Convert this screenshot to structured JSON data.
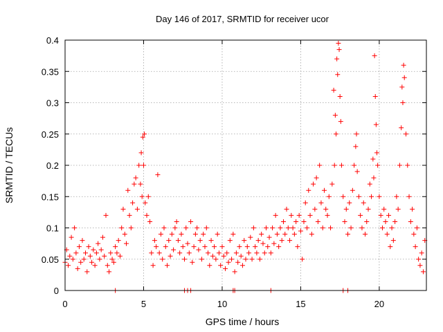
{
  "chart_data": {
    "type": "scatter",
    "title": "Day 146 of 2017, SRMTID for receiver ucor",
    "xlabel": "GPS time / hours",
    "ylabel": "SRMTID / TECUs",
    "xlim": [
      0,
      23
    ],
    "ylim": [
      0,
      0.4
    ],
    "x_ticks": [
      0,
      5,
      10,
      15,
      20
    ],
    "x_tick_labels": [
      "0",
      "5",
      "10",
      "15",
      "20"
    ],
    "y_ticks": [
      0,
      0.05,
      0.1,
      0.15,
      0.2,
      0.25,
      0.3,
      0.35,
      0.4
    ],
    "y_tick_labels": [
      "0",
      "0.05",
      "0.1",
      "0.15",
      "0.2",
      "0.25",
      "0.3",
      "0.35",
      "0.4"
    ],
    "grid": true,
    "marker": "+",
    "color": "#ff0000",
    "series": [
      {
        "name": "SRMTID",
        "points": [
          [
            0.0,
            0.045
          ],
          [
            0.1,
            0.065
          ],
          [
            0.2,
            0.04
          ],
          [
            0.3,
            0.055
          ],
          [
            0.4,
            0.085
          ],
          [
            0.5,
            0.05
          ],
          [
            0.6,
            0.1
          ],
          [
            0.7,
            0.06
          ],
          [
            0.8,
            0.035
          ],
          [
            0.9,
            0.07
          ],
          [
            1.0,
            0.045
          ],
          [
            1.1,
            0.08
          ],
          [
            1.2,
            0.05
          ],
          [
            1.3,
            0.06
          ],
          [
            1.4,
            0.03
          ],
          [
            1.5,
            0.07
          ],
          [
            1.6,
            0.055
          ],
          [
            1.7,
            0.045
          ],
          [
            1.8,
            0.065
          ],
          [
            1.9,
            0.04
          ],
          [
            2.0,
            0.06
          ],
          [
            2.1,
            0.075
          ],
          [
            2.2,
            0.05
          ],
          [
            2.3,
            0.065
          ],
          [
            2.4,
            0.085
          ],
          [
            2.5,
            0.055
          ],
          [
            2.6,
            0.12
          ],
          [
            2.7,
            0.04
          ],
          [
            2.8,
            0.03
          ],
          [
            2.9,
            0.06
          ],
          [
            3.0,
            0.05
          ],
          [
            3.1,
            0.045
          ],
          [
            3.2,
            0.07
          ],
          [
            3.3,
            0.06
          ],
          [
            3.4,
            0.08
          ],
          [
            3.5,
            0.055
          ],
          [
            3.6,
            0.1
          ],
          [
            3.7,
            0.13
          ],
          [
            3.8,
            0.09
          ],
          [
            3.9,
            0.075
          ],
          [
            4.0,
            0.16
          ],
          [
            4.1,
            0.12
          ],
          [
            4.2,
            0.1
          ],
          [
            4.3,
            0.14
          ],
          [
            4.4,
            0.17
          ],
          [
            4.5,
            0.18
          ],
          [
            4.6,
            0.13
          ],
          [
            4.7,
            0.2
          ],
          [
            4.8,
            0.17
          ],
          [
            4.85,
            0.22
          ],
          [
            4.9,
            0.15
          ],
          [
            4.95,
            0.245
          ],
          [
            5.0,
            0.2
          ],
          [
            5.05,
            0.25
          ],
          [
            5.1,
            0.14
          ],
          [
            5.2,
            0.12
          ],
          [
            5.3,
            0.15
          ],
          [
            5.4,
            0.11
          ],
          [
            5.5,
            0.06
          ],
          [
            5.6,
            0.04
          ],
          [
            5.7,
            0.08
          ],
          [
            5.8,
            0.07
          ],
          [
            5.9,
            0.185
          ],
          [
            6.0,
            0.06
          ],
          [
            6.1,
            0.09
          ],
          [
            6.2,
            0.05
          ],
          [
            6.3,
            0.1
          ],
          [
            6.4,
            0.07
          ],
          [
            6.5,
            0.04
          ],
          [
            6.6,
            0.08
          ],
          [
            6.7,
            0.055
          ],
          [
            6.8,
            0.09
          ],
          [
            6.9,
            0.065
          ],
          [
            7.0,
            0.1
          ],
          [
            7.1,
            0.11
          ],
          [
            7.2,
            0.08
          ],
          [
            7.3,
            0.06
          ],
          [
            7.4,
            0.09
          ],
          [
            7.5,
            0.07
          ],
          [
            7.6,
            0.05
          ],
          [
            7.7,
            0.1
          ],
          [
            7.8,
            0.075
          ],
          [
            7.9,
            0.06
          ],
          [
            8.0,
            0.11
          ],
          [
            8.1,
            0.045
          ],
          [
            8.2,
            0.07
          ],
          [
            8.3,
            0.09
          ],
          [
            8.4,
            0.1
          ],
          [
            8.5,
            0.065
          ],
          [
            8.6,
            0.08
          ],
          [
            8.7,
            0.05
          ],
          [
            8.8,
            0.09
          ],
          [
            8.9,
            0.07
          ],
          [
            9.0,
            0.1
          ],
          [
            9.1,
            0.06
          ],
          [
            9.2,
            0.04
          ],
          [
            9.3,
            0.08
          ],
          [
            9.4,
            0.055
          ],
          [
            9.5,
            0.07
          ],
          [
            9.6,
            0.05
          ],
          [
            9.7,
            0.09
          ],
          [
            9.8,
            0.06
          ],
          [
            9.9,
            0.04
          ],
          [
            10.0,
            0.07
          ],
          [
            10.1,
            0.055
          ],
          [
            10.2,
            0.035
          ],
          [
            10.3,
            0.06
          ],
          [
            10.4,
            0.045
          ],
          [
            10.5,
            0.08
          ],
          [
            10.6,
            0.05
          ],
          [
            10.7,
            0.09
          ],
          [
            10.8,
            0.03
          ],
          [
            10.9,
            0.06
          ],
          [
            11.0,
            0.045
          ],
          [
            11.1,
            0.07
          ],
          [
            11.2,
            0.055
          ],
          [
            11.3,
            0.04
          ],
          [
            11.4,
            0.08
          ],
          [
            11.5,
            0.05
          ],
          [
            11.6,
            0.07
          ],
          [
            11.7,
            0.06
          ],
          [
            11.8,
            0.085
          ],
          [
            11.9,
            0.05
          ],
          [
            12.0,
            0.1
          ],
          [
            12.1,
            0.07
          ],
          [
            12.2,
            0.06
          ],
          [
            12.3,
            0.08
          ],
          [
            12.4,
            0.05
          ],
          [
            12.5,
            0.09
          ],
          [
            12.6,
            0.075
          ],
          [
            12.7,
            0.06
          ],
          [
            12.8,
            0.1
          ],
          [
            12.9,
            0.07
          ],
          [
            13.0,
            0.085
          ],
          [
            13.1,
            0.06
          ],
          [
            13.2,
            0.1
          ],
          [
            13.3,
            0.075
          ],
          [
            13.4,
            0.12
          ],
          [
            13.5,
            0.09
          ],
          [
            13.6,
            0.07
          ],
          [
            13.7,
            0.1
          ],
          [
            13.8,
            0.08
          ],
          [
            13.9,
            0.11
          ],
          [
            14.0,
            0.09
          ],
          [
            14.1,
            0.13
          ],
          [
            14.2,
            0.1
          ],
          [
            14.3,
            0.08
          ],
          [
            14.4,
            0.12
          ],
          [
            14.5,
            0.1
          ],
          [
            14.6,
            0.09
          ],
          [
            14.7,
            0.11
          ],
          [
            14.8,
            0.07
          ],
          [
            14.9,
            0.12
          ],
          [
            15.0,
            0.095
          ],
          [
            15.1,
            0.05
          ],
          [
            15.2,
            0.11
          ],
          [
            15.3,
            0.14
          ],
          [
            15.4,
            0.1
          ],
          [
            15.5,
            0.16
          ],
          [
            15.6,
            0.12
          ],
          [
            15.7,
            0.09
          ],
          [
            15.8,
            0.17
          ],
          [
            15.9,
            0.13
          ],
          [
            16.0,
            0.18
          ],
          [
            16.1,
            0.11
          ],
          [
            16.2,
            0.2
          ],
          [
            16.3,
            0.14
          ],
          [
            16.4,
            0.1
          ],
          [
            16.5,
            0.16
          ],
          [
            16.6,
            0.13
          ],
          [
            16.7,
            0.12
          ],
          [
            16.8,
            0.15
          ],
          [
            16.9,
            0.1
          ],
          [
            17.0,
            0.17
          ],
          [
            17.1,
            0.32
          ],
          [
            17.15,
            0.2
          ],
          [
            17.2,
            0.28
          ],
          [
            17.25,
            0.25
          ],
          [
            17.3,
            0.37
          ],
          [
            17.35,
            0.345
          ],
          [
            17.4,
            0.395
          ],
          [
            17.45,
            0.385
          ],
          [
            17.5,
            0.31
          ],
          [
            17.55,
            0.27
          ],
          [
            17.6,
            0.2
          ],
          [
            17.7,
            0.15
          ],
          [
            17.8,
            0.11
          ],
          [
            17.9,
            0.13
          ],
          [
            18.0,
            0.09
          ],
          [
            18.1,
            0.14
          ],
          [
            18.2,
            0.1
          ],
          [
            18.3,
            0.16
          ],
          [
            18.4,
            0.2
          ],
          [
            18.5,
            0.23
          ],
          [
            18.55,
            0.25
          ],
          [
            18.6,
            0.19
          ],
          [
            18.7,
            0.15
          ],
          [
            18.8,
            0.12
          ],
          [
            18.9,
            0.1
          ],
          [
            19.0,
            0.14
          ],
          [
            19.1,
            0.09
          ],
          [
            19.2,
            0.11
          ],
          [
            19.3,
            0.13
          ],
          [
            19.4,
            0.17
          ],
          [
            19.5,
            0.15
          ],
          [
            19.6,
            0.21
          ],
          [
            19.65,
            0.18
          ],
          [
            19.7,
            0.375
          ],
          [
            19.75,
            0.31
          ],
          [
            19.8,
            0.265
          ],
          [
            19.85,
            0.22
          ],
          [
            19.9,
            0.2
          ],
          [
            20.0,
            0.15
          ],
          [
            20.1,
            0.12
          ],
          [
            20.2,
            0.1
          ],
          [
            20.3,
            0.13
          ],
          [
            20.4,
            0.11
          ],
          [
            20.5,
            0.09
          ],
          [
            20.6,
            0.12
          ],
          [
            20.7,
            0.07
          ],
          [
            20.8,
            0.1
          ],
          [
            20.9,
            0.08
          ],
          [
            21.0,
            0.11
          ],
          [
            21.1,
            0.15
          ],
          [
            21.2,
            0.13
          ],
          [
            21.3,
            0.2
          ],
          [
            21.4,
            0.26
          ],
          [
            21.45,
            0.325
          ],
          [
            21.5,
            0.3
          ],
          [
            21.55,
            0.36
          ],
          [
            21.6,
            0.34
          ],
          [
            21.7,
            0.25
          ],
          [
            21.8,
            0.2
          ],
          [
            21.9,
            0.15
          ],
          [
            22.0,
            0.11
          ],
          [
            22.1,
            0.13
          ],
          [
            22.2,
            0.09
          ],
          [
            22.3,
            0.07
          ],
          [
            22.4,
            0.1
          ],
          [
            22.5,
            0.05
          ],
          [
            22.6,
            0.04
          ],
          [
            22.7,
            0.06
          ],
          [
            22.8,
            0.03
          ],
          [
            22.9,
            0.08
          ],
          [
            3.2,
            0.0
          ],
          [
            7.6,
            0.0
          ],
          [
            7.8,
            0.0
          ],
          [
            8.0,
            0.0
          ],
          [
            10.7,
            0.0
          ],
          [
            10.8,
            0.0
          ],
          [
            13.1,
            0.0
          ],
          [
            17.7,
            0.0
          ],
          [
            18.0,
            0.0
          ]
        ]
      }
    ]
  }
}
